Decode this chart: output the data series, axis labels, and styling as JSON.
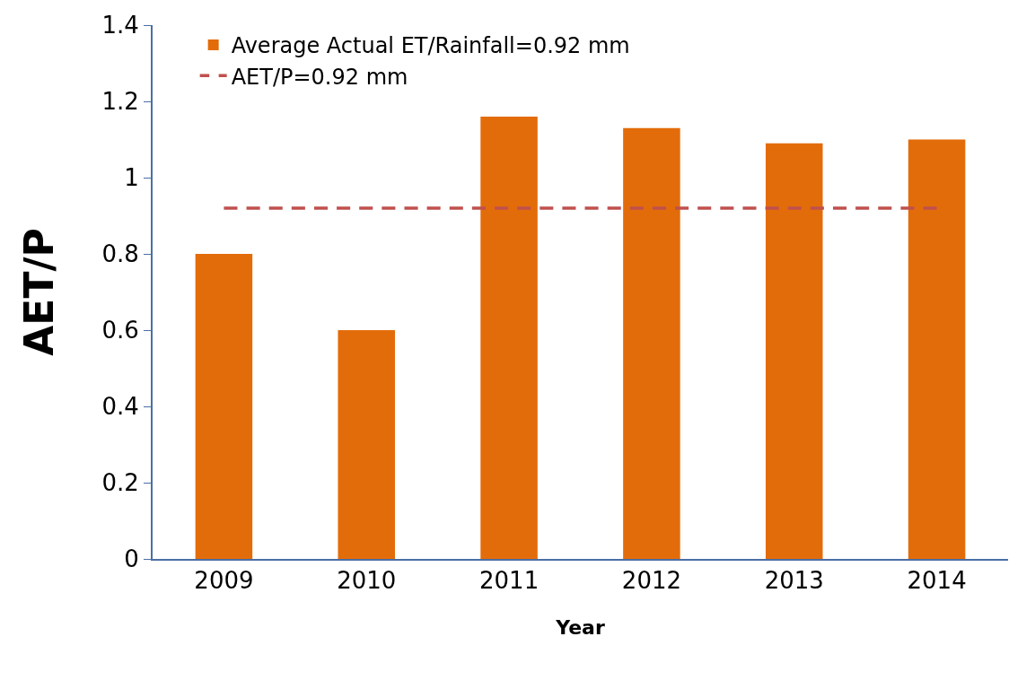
{
  "chart_data": {
    "type": "bar",
    "xlabel": "Year",
    "ylabel": "AET/P",
    "categories": [
      "2009",
      "2010",
      "2011",
      "2012",
      "2013",
      "2014"
    ],
    "series": [
      {
        "name": "Average Actual ET/Rainfall=0.92 mm",
        "color": "#e36c0a",
        "values": [
          0.8,
          0.6,
          1.16,
          1.13,
          1.09,
          1.1
        ]
      },
      {
        "name": "AET/P=0.92 mm",
        "type": "line",
        "color": "#c0504d",
        "line_style": "dashed",
        "marker": "none",
        "values": [
          0.92,
          0.92,
          0.92,
          0.92,
          0.92,
          0.92
        ]
      }
    ],
    "ylim": [
      0,
      1.4
    ],
    "yticks": [
      0,
      0.2,
      0.4,
      0.6,
      0.8,
      1,
      1.2,
      1.4
    ],
    "grid": false,
    "legend": "top left"
  }
}
